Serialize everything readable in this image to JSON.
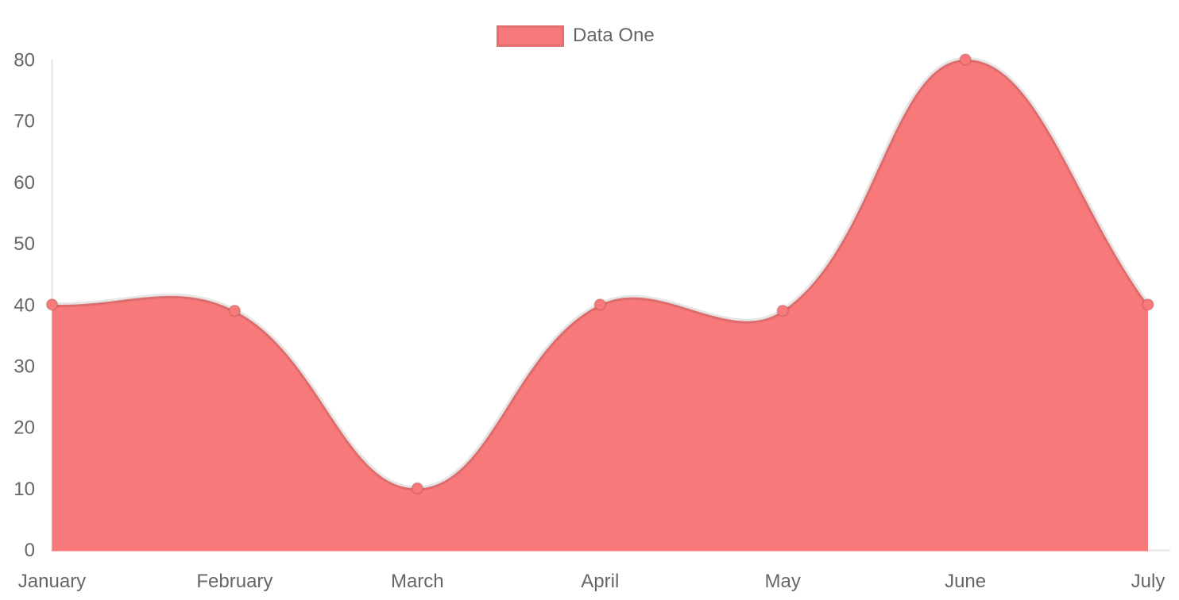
{
  "chart_data": {
    "type": "area",
    "title": "",
    "categories": [
      "January",
      "February",
      "March",
      "April",
      "May",
      "June",
      "July"
    ],
    "series": [
      {
        "name": "Data One",
        "values": [
          40,
          39,
          10,
          40,
          39,
          80,
          40
        ],
        "fill_color": "#f87979",
        "line_color": "rgba(0,0,0,0.1)",
        "point_color": "#f87979"
      }
    ],
    "xlabel": "",
    "ylabel": "",
    "ylim": [
      0,
      80
    ],
    "y_ticks": [
      0,
      10,
      20,
      30,
      40,
      50,
      60,
      70,
      80
    ],
    "grid": false,
    "legend_position": "top",
    "line_tension": 0.4,
    "axis_color": "rgba(0,0,0,0.1)",
    "tick_text_color": "#666666"
  },
  "legend": {
    "items": [
      {
        "label": "Data One",
        "swatch_color": "#f87979"
      }
    ]
  }
}
